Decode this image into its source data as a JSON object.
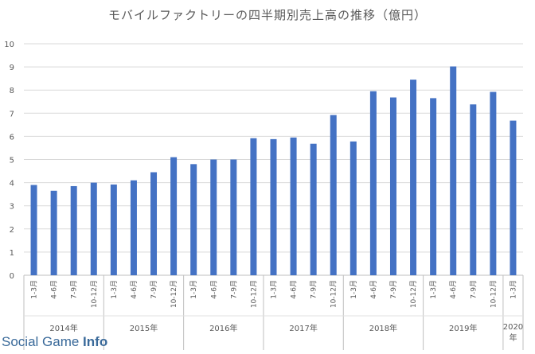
{
  "chart_data": {
    "type": "bar",
    "title": "モバイルファクトリーの四半期別売上高の推移（億円）",
    "ylim": [
      0,
      10
    ],
    "yticks": [
      0,
      1,
      2,
      3,
      4,
      5,
      6,
      7,
      8,
      9,
      10
    ],
    "grid": true,
    "bar_color": "#4472c4",
    "years": [
      {
        "label": "2014年",
        "count": 4
      },
      {
        "label": "2015年",
        "count": 4
      },
      {
        "label": "2016年",
        "count": 4
      },
      {
        "label": "2017年",
        "count": 4
      },
      {
        "label": "2018年",
        "count": 4
      },
      {
        "label": "2019年",
        "count": 4
      },
      {
        "label": "2020年",
        "count": 1
      }
    ],
    "categories": [
      "1-3月",
      "4-6月",
      "7-9月",
      "10-12月",
      "1-3月",
      "4-6月",
      "7-9月",
      "10-12月",
      "1-3月",
      "4-6月",
      "7-9月",
      "10-12月",
      "1-3月",
      "4-6月",
      "7-9月",
      "10-12月",
      "1-3月",
      "4-6月",
      "7-9月",
      "10-12月",
      "1-3月",
      "4-6月",
      "7-9月",
      "10-12月",
      "1-3月"
    ],
    "values": [
      3.9,
      3.65,
      3.85,
      4.0,
      3.92,
      4.1,
      4.45,
      5.1,
      4.8,
      5.0,
      5.0,
      5.92,
      5.88,
      5.95,
      5.68,
      6.92,
      5.78,
      7.95,
      7.68,
      8.45,
      7.65,
      9.02,
      7.38,
      7.92,
      6.68
    ]
  },
  "watermark": {
    "prefix": "Social Game ",
    "suffix": "Info"
  },
  "colors": {
    "bar": "#4472c4",
    "grid": "#d9d9d9",
    "text": "#595959"
  }
}
